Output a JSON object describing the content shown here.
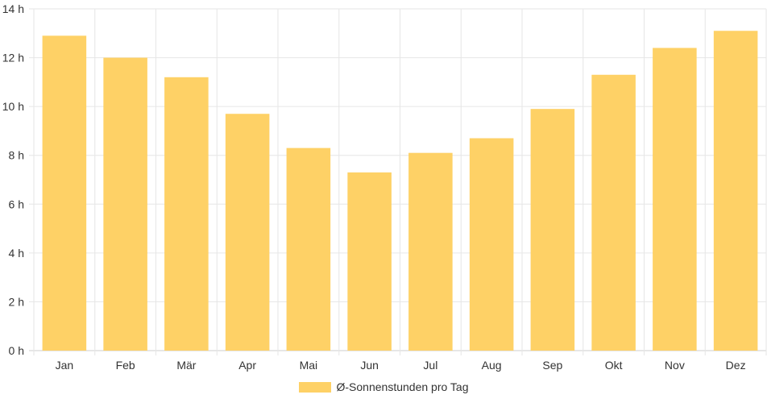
{
  "chart_data": {
    "type": "bar",
    "categories": [
      "Jan",
      "Feb",
      "Mär",
      "Apr",
      "Mai",
      "Jun",
      "Jul",
      "Aug",
      "Sep",
      "Okt",
      "Nov",
      "Dez"
    ],
    "series": [
      {
        "name": "Ø-Sonnenstunden pro Tag",
        "values": [
          12.9,
          12.0,
          11.2,
          9.7,
          8.3,
          7.3,
          8.1,
          8.7,
          9.9,
          11.3,
          12.4,
          13.1
        ],
        "color": "#fed166"
      }
    ],
    "y_ticks": [
      "0 h",
      "2 h",
      "4 h",
      "6 h",
      "8 h",
      "10 h",
      "12 h",
      "14 h"
    ],
    "ylim": [
      0,
      14
    ],
    "grid": true,
    "legend_position": "bottom"
  }
}
